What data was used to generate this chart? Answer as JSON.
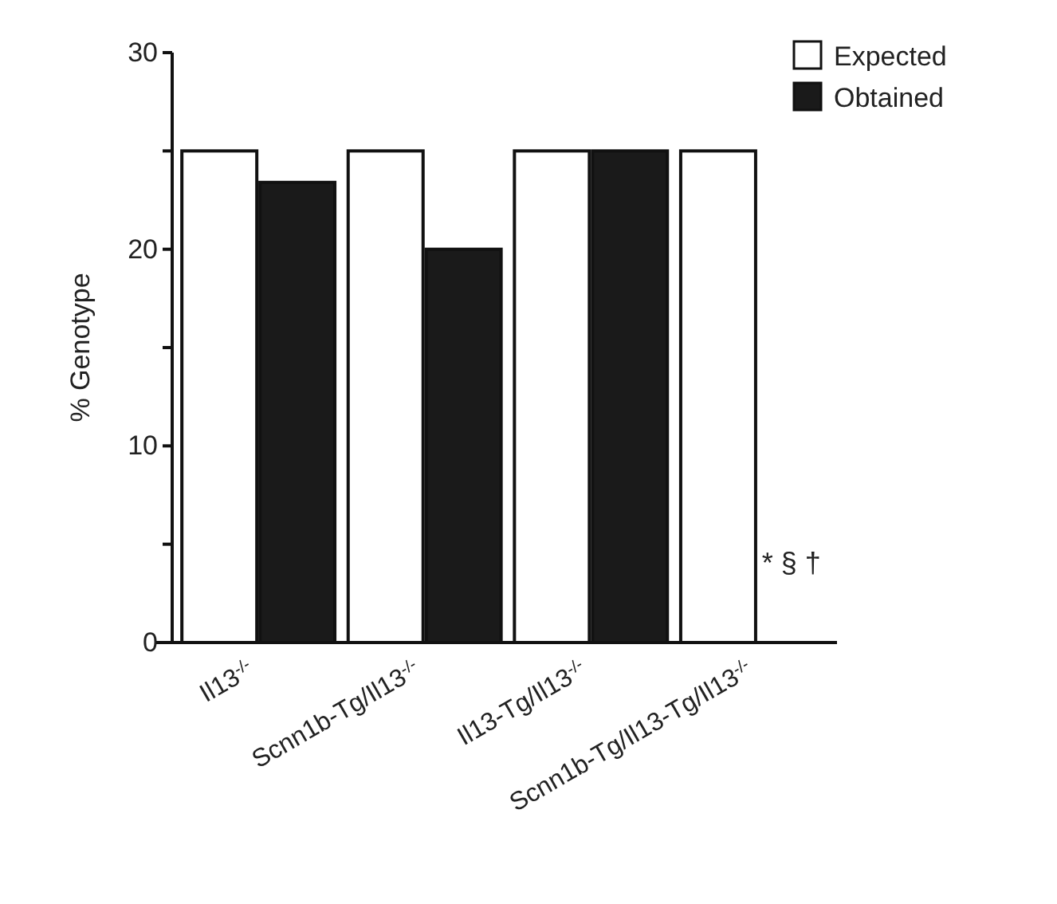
{
  "chart_data": {
    "type": "bar",
    "ylabel": "% Genotype",
    "categories": [
      "Il13$^{-/-}$",
      "Scnn1b-Tg/Il13$^{-/-}$",
      "Il13-Tg/Il13$^{-/-}$",
      "Scnn1b-Tg/Il13-Tg/Il13$^{-/-}$"
    ],
    "series": [
      {
        "name": "Expected",
        "color": "#ffffff",
        "values": [
          25,
          25,
          25,
          25
        ]
      },
      {
        "name": "Obtained",
        "color": "#1a1a1a",
        "values": [
          23.4,
          20,
          25,
          0
        ]
      }
    ],
    "ylim": [
      0,
      30
    ],
    "yticks": [
      0,
      {
        "value": 5,
        "label": null
      },
      10,
      {
        "value": 15,
        "label": null
      },
      20,
      {
        "value": 25,
        "label": null
      },
      30
    ],
    "annotations": [
      "* § †"
    ],
    "legend": "top right",
    "grid": false
  }
}
